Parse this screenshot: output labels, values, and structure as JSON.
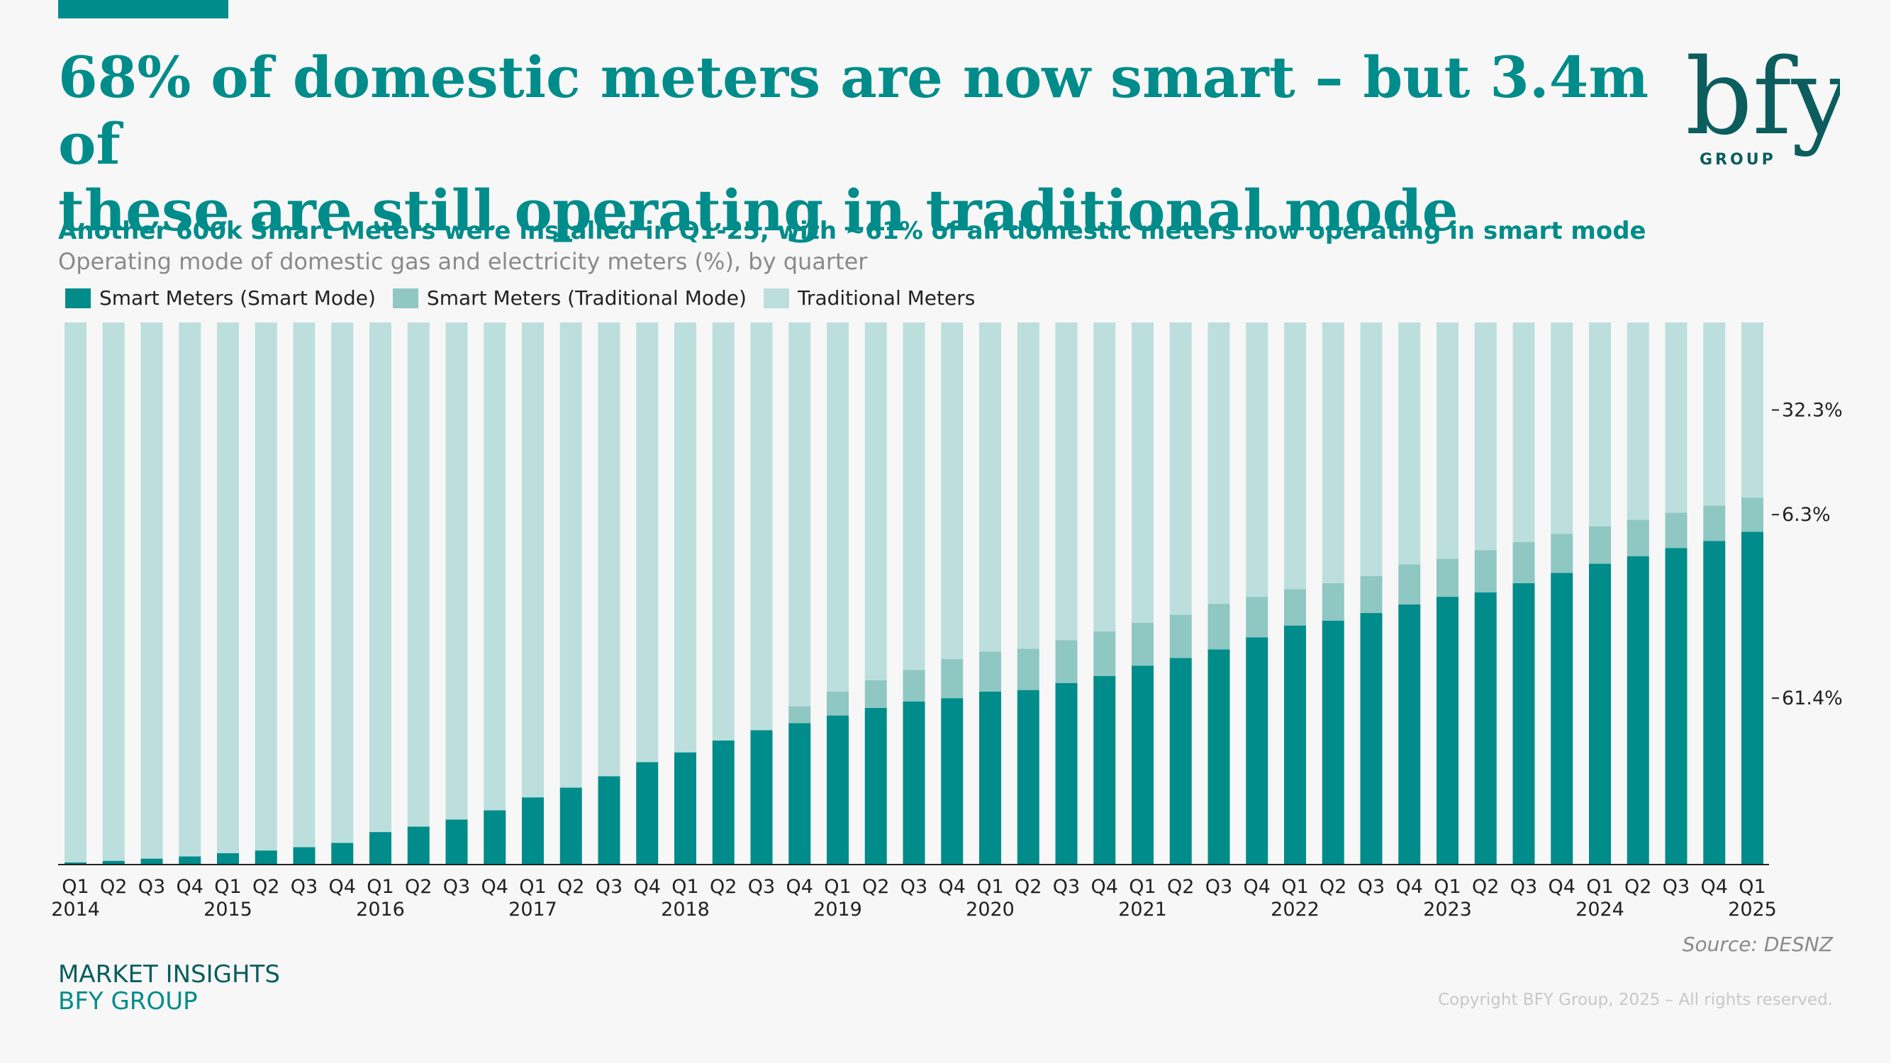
{
  "header": {
    "title_line1": "68% of domestic meters are now smart – but 3.4m of",
    "title_line2": "these are still operating in traditional mode",
    "subtitle": "Another 600k Smart Meters were installed in Q1-25, with ~61% of all domestic meters now operating in smart mode",
    "description": "Operating mode of domestic gas and electricity meters (%), by quarter"
  },
  "logo": {
    "text_main": "bfy",
    "text_group": "GROUP",
    "color": "#0b5d5e"
  },
  "colors": {
    "smart_mode": "#008c8a",
    "smart_traditional": "#8fc7c3",
    "traditional": "#bcdfdd",
    "accent": "#008c8a"
  },
  "chart_data": {
    "type": "bar",
    "stacked": true,
    "ylim": [
      0,
      100
    ],
    "grid": false,
    "legend_position": "top-left",
    "legend": [
      "Smart Meters (Smart Mode)",
      "Smart Meters (Traditional Mode)",
      "Traditional Meters"
    ],
    "quarter_labels": [
      "Q1",
      "Q2",
      "Q3",
      "Q4",
      "Q1",
      "Q2",
      "Q3",
      "Q4",
      "Q1",
      "Q2",
      "Q3",
      "Q4",
      "Q1",
      "Q2",
      "Q3",
      "Q4",
      "Q1",
      "Q2",
      "Q3",
      "Q4",
      "Q1",
      "Q2",
      "Q3",
      "Q4",
      "Q1",
      "Q2",
      "Q3",
      "Q4",
      "Q1",
      "Q2",
      "Q3",
      "Q4",
      "Q1",
      "Q2",
      "Q3",
      "Q4",
      "Q1",
      "Q2",
      "Q3",
      "Q4",
      "Q1",
      "Q2",
      "Q3",
      "Q4",
      "Q1"
    ],
    "year_labels": [
      {
        "index": 0,
        "label": "2014"
      },
      {
        "index": 4,
        "label": "2015"
      },
      {
        "index": 8,
        "label": "2016"
      },
      {
        "index": 12,
        "label": "2017"
      },
      {
        "index": 16,
        "label": "2018"
      },
      {
        "index": 20,
        "label": "2019"
      },
      {
        "index": 24,
        "label": "2020"
      },
      {
        "index": 28,
        "label": "2021"
      },
      {
        "index": 32,
        "label": "2022"
      },
      {
        "index": 36,
        "label": "2023"
      },
      {
        "index": 40,
        "label": "2024"
      },
      {
        "index": 44,
        "label": "2025"
      }
    ],
    "series": [
      {
        "name": "Smart Meters (Smart Mode)",
        "values": [
          0.4,
          0.7,
          1.1,
          1.5,
          2.1,
          2.6,
          3.2,
          4.0,
          6.0,
          7.0,
          8.3,
          10.0,
          12.4,
          14.2,
          16.3,
          18.9,
          20.7,
          22.9,
          24.8,
          26.1,
          27.5,
          28.9,
          30.1,
          30.7,
          31.9,
          32.2,
          33.5,
          34.8,
          36.7,
          38.1,
          39.7,
          41.9,
          44.1,
          45.0,
          46.4,
          48.0,
          49.4,
          50.2,
          51.9,
          53.8,
          55.5,
          56.9,
          58.4,
          59.7,
          61.4
        ]
      },
      {
        "name": "Smart Meters (Traditional Mode)",
        "values": [
          0,
          0,
          0,
          0,
          0,
          0,
          0,
          0,
          0,
          0,
          0,
          0,
          0,
          0,
          0,
          0,
          0,
          0,
          0,
          3.1,
          4.4,
          5.1,
          5.8,
          7.2,
          7.4,
          7.6,
          7.9,
          8.2,
          7.9,
          8.0,
          8.4,
          7.5,
          6.7,
          6.9,
          6.8,
          7.4,
          7.0,
          7.8,
          7.6,
          7.2,
          6.9,
          6.7,
          6.5,
          6.5,
          6.3
        ]
      },
      {
        "name": "Traditional Meters",
        "values": [
          99.6,
          99.3,
          98.9,
          98.5,
          97.9,
          97.4,
          96.8,
          96.0,
          94.0,
          93.0,
          91.7,
          90.0,
          87.6,
          85.8,
          83.7,
          81.1,
          79.3,
          77.1,
          75.2,
          70.8,
          68.1,
          66.0,
          64.1,
          62.1,
          60.7,
          60.2,
          58.6,
          57.0,
          55.4,
          53.9,
          51.9,
          50.6,
          49.2,
          48.1,
          46.8,
          44.6,
          43.6,
          42.0,
          40.5,
          39.0,
          37.6,
          36.4,
          35.1,
          33.8,
          32.3
        ]
      }
    ],
    "end_labels": [
      "32.3%",
      "6.3%",
      "61.4%"
    ]
  },
  "source": "Source: DESNZ",
  "footer": {
    "line1": "MARKET INSIGHTS",
    "line2": "BFY GROUP",
    "copyright": "Copyright BFY Group, 2025 – All rights reserved."
  }
}
